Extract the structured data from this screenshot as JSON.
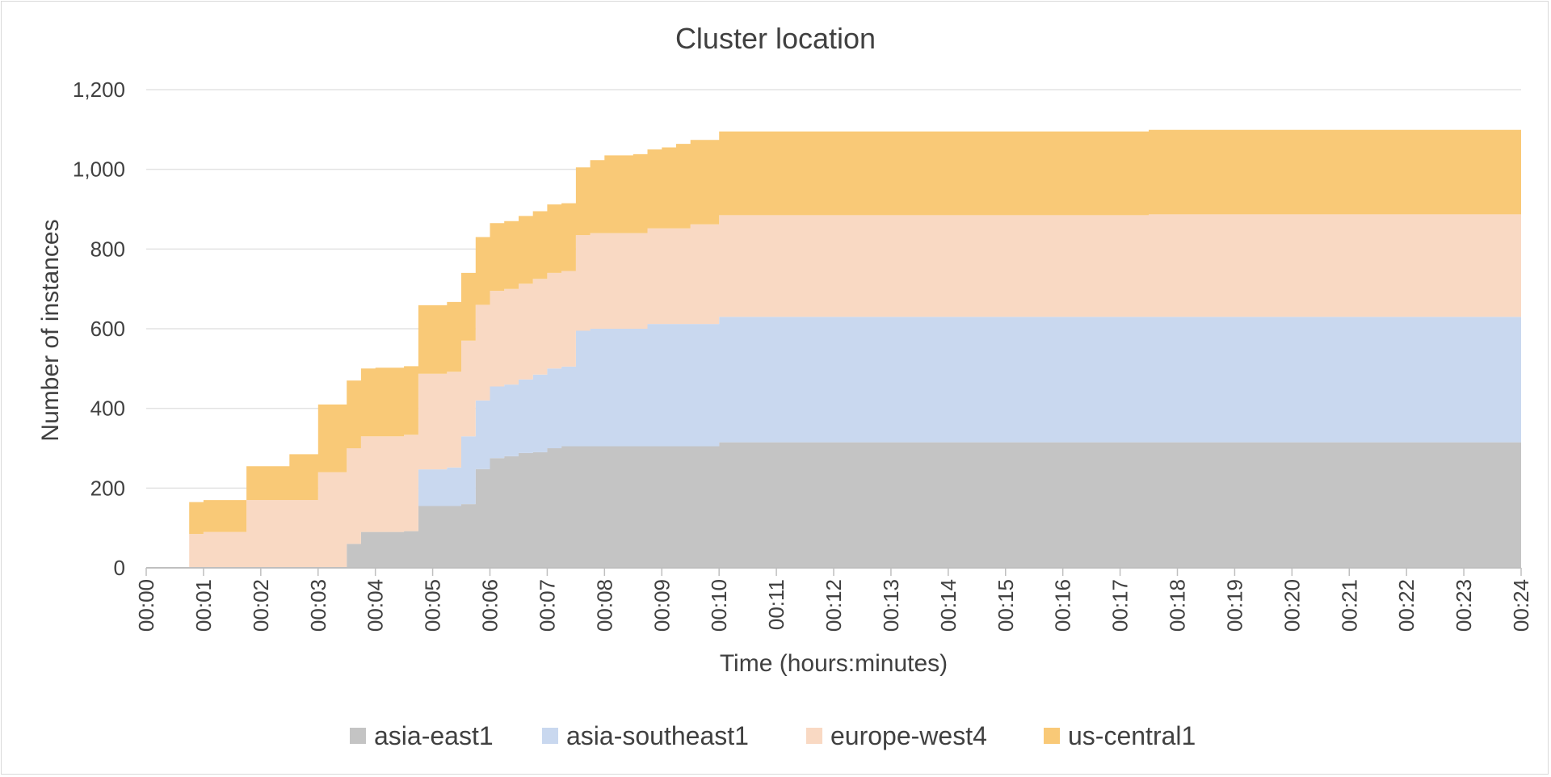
{
  "chart_data": {
    "type": "area",
    "stacked": true,
    "step": true,
    "title": "Cluster location",
    "xlabel": "Time (hours:minutes)",
    "ylabel": "Number of instances",
    "ylim": [
      0,
      1200
    ],
    "yticks": [
      0,
      200,
      400,
      600,
      800,
      1000,
      1200
    ],
    "ytick_labels": [
      "0",
      "200",
      "400",
      "600",
      "800",
      "1,000",
      "1,200"
    ],
    "xlim": [
      0,
      24
    ],
    "xticks": [
      0,
      1,
      2,
      3,
      4,
      5,
      6,
      7,
      8,
      9,
      10,
      11,
      12,
      13,
      14,
      15,
      16,
      17,
      18,
      19,
      20,
      21,
      22,
      23,
      24
    ],
    "xtick_labels": [
      "00:00",
      "00:01",
      "00:02",
      "00:03",
      "00:04",
      "00:05",
      "00:06",
      "00:07",
      "00:08",
      "00:09",
      "00:10",
      "00:11",
      "00:12",
      "00:13",
      "00:14",
      "00:15",
      "00:16",
      "00:17",
      "00:18",
      "00:19",
      "00:20",
      "00:21",
      "00:22",
      "00:23",
      "00:24"
    ],
    "grid": true,
    "legend_position": "bottom",
    "x": [
      0.0,
      0.75,
      1.0,
      1.75,
      2.5,
      3.0,
      3.5,
      3.75,
      4.0,
      4.5,
      4.75,
      5.25,
      5.5,
      5.75,
      6.0,
      6.25,
      6.5,
      6.75,
      7.0,
      7.25,
      7.5,
      7.75,
      8.0,
      8.5,
      8.75,
      9.0,
      9.25,
      9.5,
      10.0,
      13.0,
      16.0,
      17.0,
      17.5,
      24.0
    ],
    "series": [
      {
        "name": "asia-east1",
        "color": "#c4c4c4",
        "values": [
          0,
          0,
          0,
          0,
          0,
          0,
          60,
          90,
          90,
          92,
          155,
          155,
          160,
          248,
          275,
          280,
          288,
          290,
          300,
          305,
          305,
          305,
          305,
          305,
          305,
          305,
          305,
          305,
          315,
          315,
          315,
          315,
          315,
          315
        ]
      },
      {
        "name": "asia-southeast1",
        "color": "#c9d8ef",
        "values": [
          0,
          0,
          0,
          0,
          0,
          0,
          0,
          0,
          0,
          0,
          92,
          97,
          170,
          172,
          180,
          180,
          185,
          195,
          200,
          200,
          290,
          295,
          295,
          295,
          307,
          307,
          307,
          307,
          315,
          315,
          315,
          315,
          315,
          315
        ]
      },
      {
        "name": "europe-west4",
        "color": "#f9d9c3",
        "values": [
          0,
          85,
          90,
          170,
          170,
          240,
          240,
          240,
          240,
          242,
          240,
          240,
          240,
          240,
          240,
          240,
          240,
          240,
          240,
          240,
          240,
          240,
          240,
          240,
          240,
          240,
          240,
          250,
          255,
          255,
          255,
          255,
          257,
          257
        ]
      },
      {
        "name": "us-central1",
        "color": "#f9c977",
        "values": [
          0,
          80,
          80,
          85,
          115,
          170,
          170,
          170,
          172,
          172,
          172,
          175,
          170,
          170,
          170,
          170,
          170,
          170,
          172,
          170,
          170,
          183,
          195,
          198,
          198,
          203,
          212,
          212,
          210,
          210,
          210,
          210,
          212,
          212
        ]
      }
    ]
  }
}
